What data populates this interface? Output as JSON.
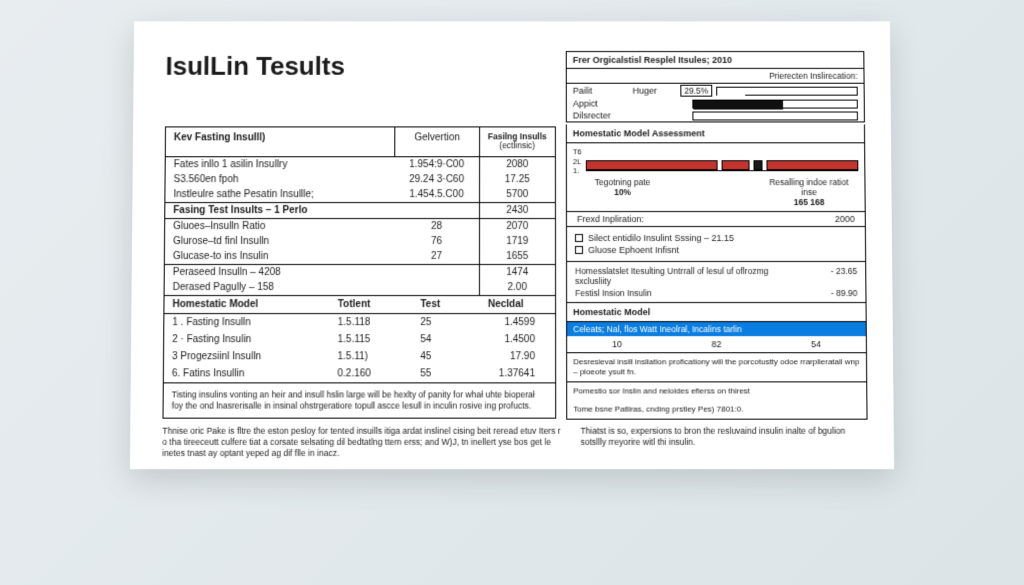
{
  "title": "IsulLin Tesults",
  "topright": {
    "head_left": "Frer Orgicalstisl Resplel Itsules; 2010",
    "sub": "Prierecten Inslirecation:",
    "rows": [
      {
        "l": "Pailit",
        "m": "Huger",
        "pct": "29.5%",
        "bar_w": "20%",
        "bar_color": "#ffffff"
      },
      {
        "l": "Appict",
        "m": "",
        "pct": "",
        "bar_w": "55%",
        "bar_color": "#111111"
      },
      {
        "l": "Dilsrecter",
        "m": "",
        "pct": "",
        "bar_w": "0%",
        "bar_color": "#111111"
      }
    ]
  },
  "main": {
    "headers": {
      "c1": "Kev Fasting Insulll)",
      "c2": "Gelvertion",
      "c3a": "Fasilng Insulls",
      "c3b": "(ectlinsic)"
    },
    "block1": [
      {
        "a": "Fates inllo 1 asilin Insullry",
        "b": "1.954:9·C00",
        "c": "2080"
      },
      {
        "a": "S3.560en fpoh",
        "b": "29.24 3·C60",
        "c": "17.25"
      },
      {
        "a": "Instleulre sathe Pesatin Insullle;",
        "b": "1.454.5.C00",
        "c": "5700"
      }
    ],
    "fasing_title": "Fasing Test Insults  – 1 Perlo",
    "fasing_val": "2430",
    "block2": [
      {
        "a": "Gluoes–Insulln Ratio",
        "b": "28",
        "c": "2070"
      },
      {
        "a": "Glurose–td finl Insulln",
        "b": "76",
        "c": "1719"
      },
      {
        "a": "Glucase-to ins Insulin",
        "b": "27",
        "c": "1655"
      }
    ],
    "block3": [
      {
        "a": "Peraseed Insulln  – 4208",
        "b": "",
        "c": "1474"
      },
      {
        "a": "Derased Pagully  – 158",
        "b": "",
        "c": "2.00"
      }
    ],
    "hm_title": "Homestatic Model",
    "hm_headers": {
      "c1": "",
      "c2": "Totlent",
      "c3": "Test",
      "c4": "Necldal"
    },
    "hm_rows": [
      {
        "a": "1 . Fasting Insulln",
        "b": "1.5.118",
        "c": "25",
        "d": "1.4599"
      },
      {
        "a": "2 · Fasting Insulin",
        "b": "1.5.115",
        "c": "54",
        "d": "1.4500"
      },
      {
        "a": "3  Progezsiinl Insulln",
        "b": "1.5.11)",
        "c": "45",
        "d": "17.90"
      },
      {
        "a": "6. Fatins Insullin",
        "b": "0.2.160",
        "c": "55",
        "d": "1.37641"
      }
    ],
    "footnote": "Tisting insulins vonting an heir and insull hslin large will be hexlty of panity for whał uhte bioperał foy the ond lnasrerisalle in insinal ohstrgeratiore topull ascce lesull in inculin rosive ing profucts."
  },
  "hma": {
    "title": "Homestatic Model Assessment",
    "ylabels": [
      "T6",
      "2L",
      "1."
    ],
    "bars": [
      {
        "w": "58%",
        "c": "#c4342f"
      },
      {
        "w": "12%",
        "c": "#c4342f"
      },
      {
        "w": "4%",
        "c": "#1a1a1a"
      },
      {
        "w": "40%",
        "c": "#c4342f"
      }
    ],
    "stats": [
      {
        "l": "Tegotning pate",
        "v": "10%"
      },
      {
        "l": "Resalling indoe ratiot inse",
        "v": "165    168"
      }
    ],
    "fixed": {
      "l": "Frexd Inpliration:",
      "v": "2000"
    },
    "checks": [
      "Silect entidilo Insulint Sssing – 21.15",
      "Gluose Ephoent Infisnt"
    ],
    "kvs": [
      {
        "l": "Homesslatslet Itesulting Untrrall of lesul uf oflrozmg sxclusliity",
        "v": "- 23.65"
      },
      {
        "l": "Festisl Insion Insulin",
        "v": "- 89.90"
      }
    ],
    "hm2_title": "Homestatic Model",
    "highlight": "Celeats; Nal, flos Watt Ineolral, Incalins tarlin",
    "tri": [
      "10",
      "82",
      "54"
    ],
    "para": "Desresieval insill insliation proficationy will the porcotustty odoe rrarplieratall wnp – ploeote ysult fn.",
    "para2": "Pomestio sor Inslin and neloides efierss on thirest",
    "para3": "Tome bsne Patliras, cnding prstley Pes) 7801:0."
  },
  "bottom": {
    "left": "Thnise oric Pake is fltre the eston pesloy for tented insuills itiga ardat inslinel cising beit reread etuv Iters r o tha tireeceutt culfere tiat a corsate selsating dil bedtatlng ttem erss; and W)J, tn inellert yse bos get le inetes tnast ay optant yeped ag dif flle in inacz.",
    "right": "Thiatst is so, expersions to bron the resluvaind insulin inalte of bgulion sotsllly rreyorire witl thi insulin."
  }
}
